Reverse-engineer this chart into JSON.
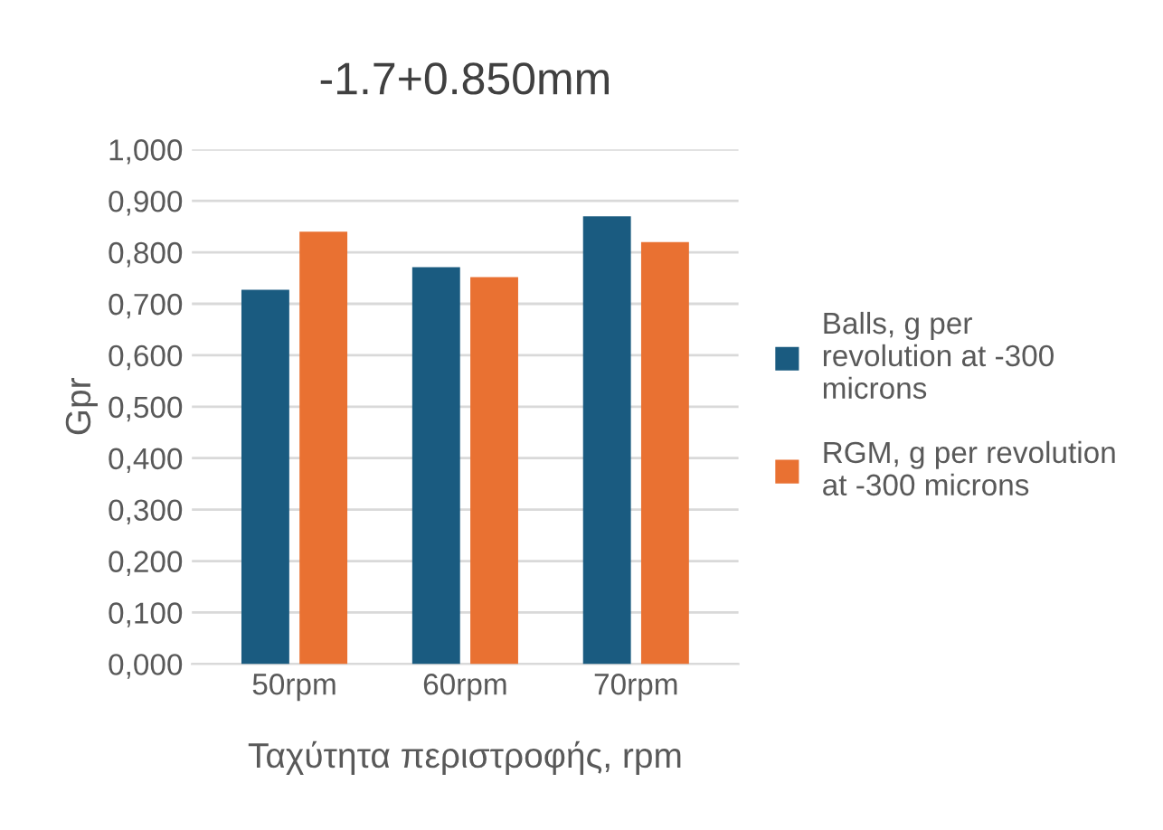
{
  "chart_data": {
    "type": "bar",
    "title": "-1.7+0.850mm",
    "xlabel": "Ταχύτητα περιστροφής, rpm",
    "ylabel": "Gpr",
    "categories": [
      "50rpm",
      "60rpm",
      "70rpm"
    ],
    "series": [
      {
        "name": "Balls, g per revolution at -300 microns",
        "color": "#1a5b80",
        "values": [
          0.727,
          0.771,
          0.87
        ]
      },
      {
        "name": "RGM, g per revolution at -300 microns",
        "color": "#e97132",
        "values": [
          0.84,
          0.752,
          0.82
        ]
      }
    ],
    "ylim": [
      0,
      1.0
    ],
    "yticks": [
      {
        "value": 0,
        "label": "0,000"
      },
      {
        "value": 0.1,
        "label": "0,100"
      },
      {
        "value": 0.2,
        "label": "0,200"
      },
      {
        "value": 0.3,
        "label": "0,300"
      },
      {
        "value": 0.4,
        "label": "0,400"
      },
      {
        "value": 0.5,
        "label": "0,500"
      },
      {
        "value": 0.6,
        "label": "0,600"
      },
      {
        "value": 0.7,
        "label": "0,700"
      },
      {
        "value": 0.8,
        "label": "0,800"
      },
      {
        "value": 0.9,
        "label": "0,900"
      },
      {
        "value": 1.0,
        "label": "1,000"
      }
    ],
    "grid": "y",
    "legend": "right"
  }
}
